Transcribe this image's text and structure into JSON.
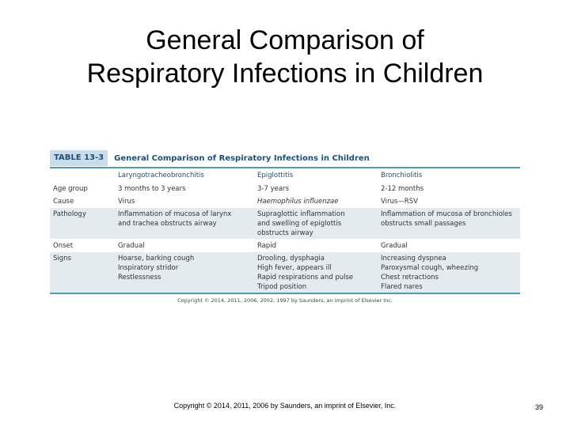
{
  "slide": {
    "title_line1": "General Comparison of",
    "title_line2": "Respiratory Infections in Children"
  },
  "table": {
    "number": "TABLE 13-3",
    "title": "General Comparison of Respiratory Infections in Children",
    "columns": [
      "",
      "Laryngotracheobronchitis",
      "Epiglottitis",
      "Bronchiolitis"
    ],
    "rows": [
      {
        "label": "Age group",
        "cells": [
          [
            "3 months to 3 years"
          ],
          [
            "3-7 years"
          ],
          [
            "2-12 months"
          ]
        ]
      },
      {
        "label": "Cause",
        "cells": [
          [
            "Virus"
          ],
          [
            "Haemophilus influenzae"
          ],
          [
            "Virus—RSV"
          ]
        ]
      },
      {
        "label": "Pathology",
        "cells": [
          [
            "Inflammation of mucosa of larynx",
            "and trachea obstructs airway"
          ],
          [
            "Supraglottic inflammation",
            "and swelling of epiglottis",
            "obstructs airway"
          ],
          [
            "Inflammation of mucosa of bronchioles",
            "obstructs small passages"
          ]
        ]
      },
      {
        "label": "Onset",
        "cells": [
          [
            "Gradual"
          ],
          [
            "Rapid"
          ],
          [
            "Gradual"
          ]
        ]
      },
      {
        "label": "Signs",
        "cells": [
          [
            "Hoarse, barking cough",
            "Inspiratory stridor",
            "Restlessness"
          ],
          [
            "Drooling, dysphagia",
            "High fever, appears ill",
            "Rapid respirations and pulse",
            "Tripod position"
          ],
          [
            "Increasing dyspnea",
            "Paroxysmal cough, wheezing",
            "Chest retractions",
            "Flared nares"
          ]
        ]
      }
    ],
    "credit": "Copyright © 2014, 2011, 2006, 2002, 1997 by Saunders, an imprint of Elsevier Inc."
  },
  "footer": {
    "copyright": "Copyright © 2014, 2011, 2006 by Saunders, an imprint of Elsevier, Inc.",
    "page_number": "39"
  },
  "colors": {
    "accent": "#1c4f7e",
    "rule": "#4d9bb4",
    "shade": "#e3ebef"
  }
}
